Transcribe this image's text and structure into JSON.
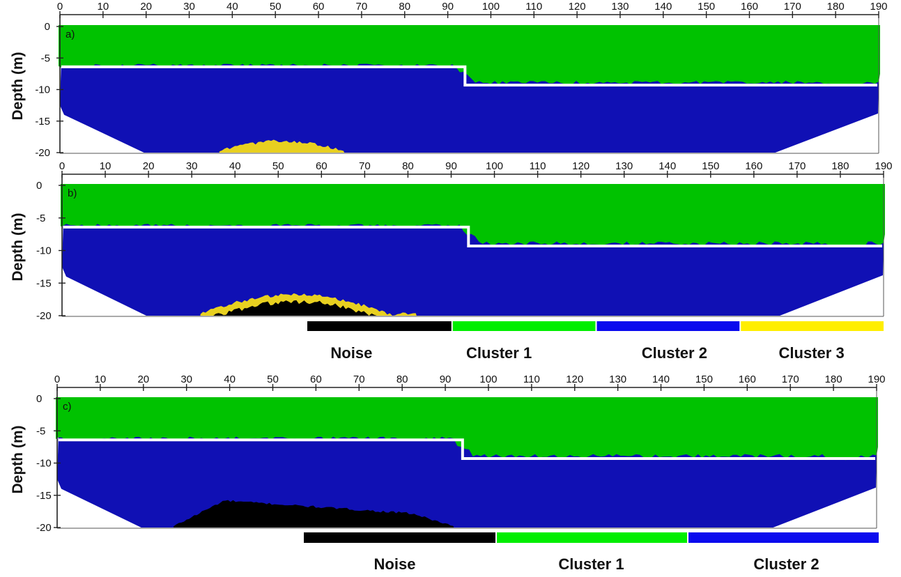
{
  "figure": {
    "x_ticks": [
      "0",
      "10",
      "20",
      "30",
      "40",
      "50",
      "60",
      "70",
      "80",
      "90",
      "100",
      "110",
      "120",
      "130",
      "140",
      "150",
      "160",
      "170",
      "180",
      "190"
    ],
    "y_ticks": [
      "0",
      "-5",
      "-10",
      "-15",
      "-20"
    ],
    "y_axis_label": "Depth (m)",
    "panels": [
      {
        "label": "a)",
        "bottom_body": "thin_yellow"
      },
      {
        "label": "b)",
        "bottom_body": "yellow_rimmed_black"
      },
      {
        "label": "c)",
        "bottom_body": "black"
      }
    ],
    "legends": [
      {
        "after_panel": "b)",
        "entries": [
          {
            "label": "Noise",
            "color": "#000000"
          },
          {
            "label": "Cluster 1",
            "color": "#00ee00"
          },
          {
            "label": "Cluster 2",
            "color": "#0a0aee"
          },
          {
            "label": "Cluster 3",
            "color": "#ffee00"
          }
        ]
      },
      {
        "after_panel": "c)",
        "entries": [
          {
            "label": "Noise",
            "color": "#000000"
          },
          {
            "label": "Cluster 1",
            "color": "#00ee00"
          },
          {
            "label": "Cluster 2",
            "color": "#0a0aee"
          }
        ]
      }
    ],
    "colors": {
      "upper_layer": "#00c200",
      "lower_layer": "#1010b4",
      "cluster3_yellow": "#e8d020",
      "interface_line": "#ffffff",
      "axis": "#222222"
    }
  }
}
